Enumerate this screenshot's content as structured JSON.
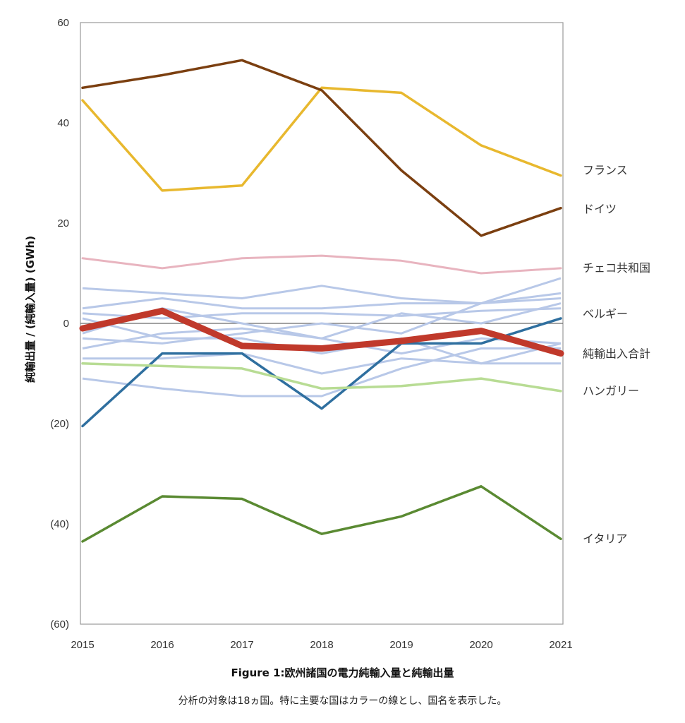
{
  "chart_data": {
    "type": "line",
    "x": [
      "2015",
      "2016",
      "2017",
      "2018",
      "2019",
      "2020",
      "2021"
    ],
    "ylim": [
      -60,
      60
    ],
    "yticks": [
      60,
      40,
      20,
      0,
      -20,
      -40,
      -60
    ],
    "ytick_labels": [
      "60",
      "40",
      "20",
      "0",
      "(20)",
      "(40)",
      "(60)"
    ],
    "ylabel": "純輸出量 / (純輸入量) (GWh)",
    "highlighted_series": [
      {
        "name": "フランス",
        "color": "#e8b82e",
        "width": 3.5,
        "values": [
          44.5,
          26.5,
          27.5,
          47,
          46,
          35.5,
          29.5
        ]
      },
      {
        "name": "ドイツ",
        "color": "#7b3f10",
        "width": 3.5,
        "values": [
          47,
          49.5,
          52.5,
          46.5,
          30.5,
          17.5,
          23
        ]
      },
      {
        "name": "チェコ共和国",
        "color": "#e8b4bf",
        "width": 3,
        "values": [
          13,
          11,
          13,
          13.5,
          12.5,
          10,
          11
        ]
      },
      {
        "name": "ベルギー",
        "color": "#2f6f9f",
        "width": 3.5,
        "values": [
          -20.5,
          -6,
          -6,
          -17,
          -4,
          -4,
          1
        ]
      },
      {
        "name": "純輸出入合計",
        "color": "#c0392b",
        "width": 9,
        "values": [
          -1,
          2.5,
          -4.5,
          -5,
          -3.5,
          -1.5,
          -6
        ]
      },
      {
        "name": "ハンガリー",
        "color": "#b8dc94",
        "width": 3.5,
        "values": [
          -8,
          -8.5,
          -9,
          -13,
          -12.5,
          -11,
          -13.5
        ]
      },
      {
        "name": "イタリア",
        "color": "#5a8a32",
        "width": 3.5,
        "values": [
          -43.5,
          -34.5,
          -35,
          -42,
          -38.5,
          -32.5,
          -43
        ]
      }
    ],
    "other_series_color": "#b8c8e8",
    "other_series": [
      [
        7,
        6,
        5,
        7.5,
        5,
        4,
        9
      ],
      [
        3,
        5,
        3,
        3,
        4,
        4,
        6
      ],
      [
        2,
        1,
        2,
        2,
        1.5,
        2.5,
        3
      ],
      [
        -3,
        -4,
        -2,
        0,
        -2,
        4,
        5
      ],
      [
        -5,
        -2,
        -1,
        -3,
        -6,
        -3,
        -4
      ],
      [
        -7,
        -7,
        -6,
        -10,
        -7,
        -8,
        -8
      ],
      [
        -11,
        -13,
        -14.5,
        -14.5,
        -9,
        -5,
        -5
      ],
      [
        1,
        -3,
        -3,
        -6,
        -3,
        -8,
        -4
      ],
      [
        -2,
        3,
        0,
        -3,
        2,
        0,
        4
      ]
    ]
  },
  "caption": {
    "title": "Figure 1:欧州諸国の電力純輸入量と純輸出量",
    "subtitle": "分析の対象は18ヵ国。特に主要な国はカラーの線とし、国名を表示した。"
  }
}
